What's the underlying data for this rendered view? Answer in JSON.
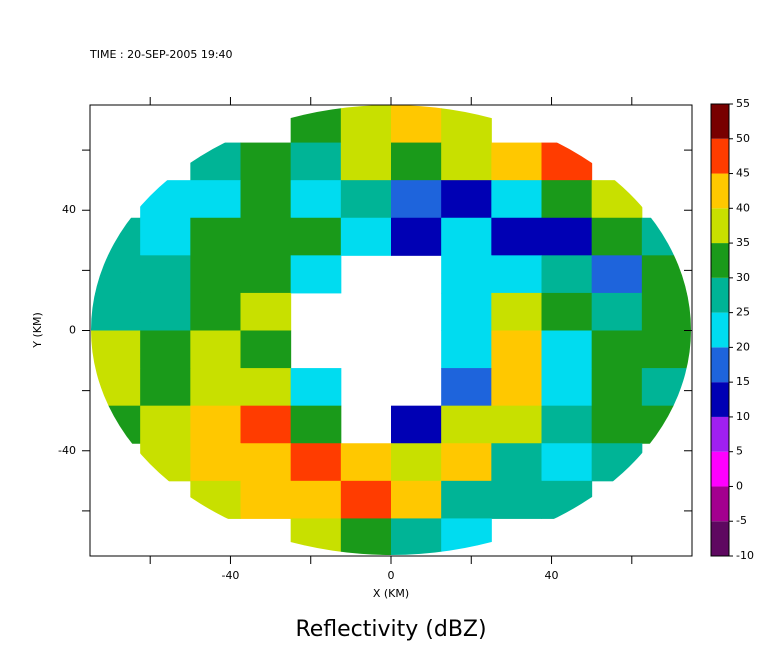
{
  "chart_data": {
    "type": "heatmap",
    "title": "Reflectivity (dBZ)",
    "subtitle": "TIME : 20-SEP-2005 19:40",
    "xlabel": "X (KM)",
    "ylabel": "Y (KM)",
    "xlim": [
      -75,
      75
    ],
    "ylim": [
      -75,
      75
    ],
    "xticks": [
      -40,
      0,
      40
    ],
    "yticks": [
      -40,
      0,
      40
    ],
    "xminor": [
      -60,
      -20,
      20,
      60
    ],
    "yminor": [
      -60,
      -20,
      20,
      60
    ],
    "zticks": [
      -10,
      -5,
      0,
      5,
      10,
      15,
      20,
      25,
      30,
      35,
      40,
      45,
      50,
      55
    ],
    "colors": [
      "#5e0860",
      "#a3008f",
      "#ff00ff",
      "#a020f0",
      "#0000b4",
      "#1e64dc",
      "#00dcf0",
      "#00b496",
      "#1a9a1a",
      "#c8e000",
      "#ffc800",
      "#ff3c00",
      "#780000"
    ],
    "z": [
      [
        null,
        null,
        null,
        null,
        30,
        38,
        40,
        35,
        null,
        null,
        null,
        null
      ],
      [
        null,
        null,
        25,
        30,
        25,
        35,
        30,
        38,
        42,
        45,
        null,
        null
      ],
      [
        null,
        23,
        22,
        30,
        22,
        25,
        15,
        12,
        20,
        30,
        38,
        null
      ],
      [
        25,
        22,
        30,
        33,
        30,
        20,
        12,
        20,
        12,
        12,
        30,
        25
      ],
      [
        27,
        28,
        32,
        30,
        22,
        null,
        null,
        22,
        20,
        28,
        15,
        30
      ],
      [
        25,
        26,
        32,
        35,
        null,
        null,
        null,
        20,
        35,
        30,
        25,
        30
      ],
      [
        35,
        30,
        35,
        30,
        null,
        null,
        null,
        22,
        40,
        22,
        30,
        32
      ],
      [
        35,
        32,
        38,
        35,
        20,
        null,
        null,
        15,
        42,
        22,
        30,
        25
      ],
      [
        32,
        38,
        42,
        45,
        30,
        null,
        10,
        36,
        36,
        25,
        30,
        30
      ],
      [
        null,
        35,
        40,
        42,
        45,
        42,
        35,
        42,
        25,
        22,
        28,
        null
      ],
      [
        null,
        null,
        38,
        42,
        40,
        47,
        42,
        25,
        25,
        26,
        null,
        null
      ],
      [
        null,
        null,
        null,
        null,
        38,
        33,
        25,
        22,
        null,
        null,
        null,
        null
      ]
    ]
  }
}
